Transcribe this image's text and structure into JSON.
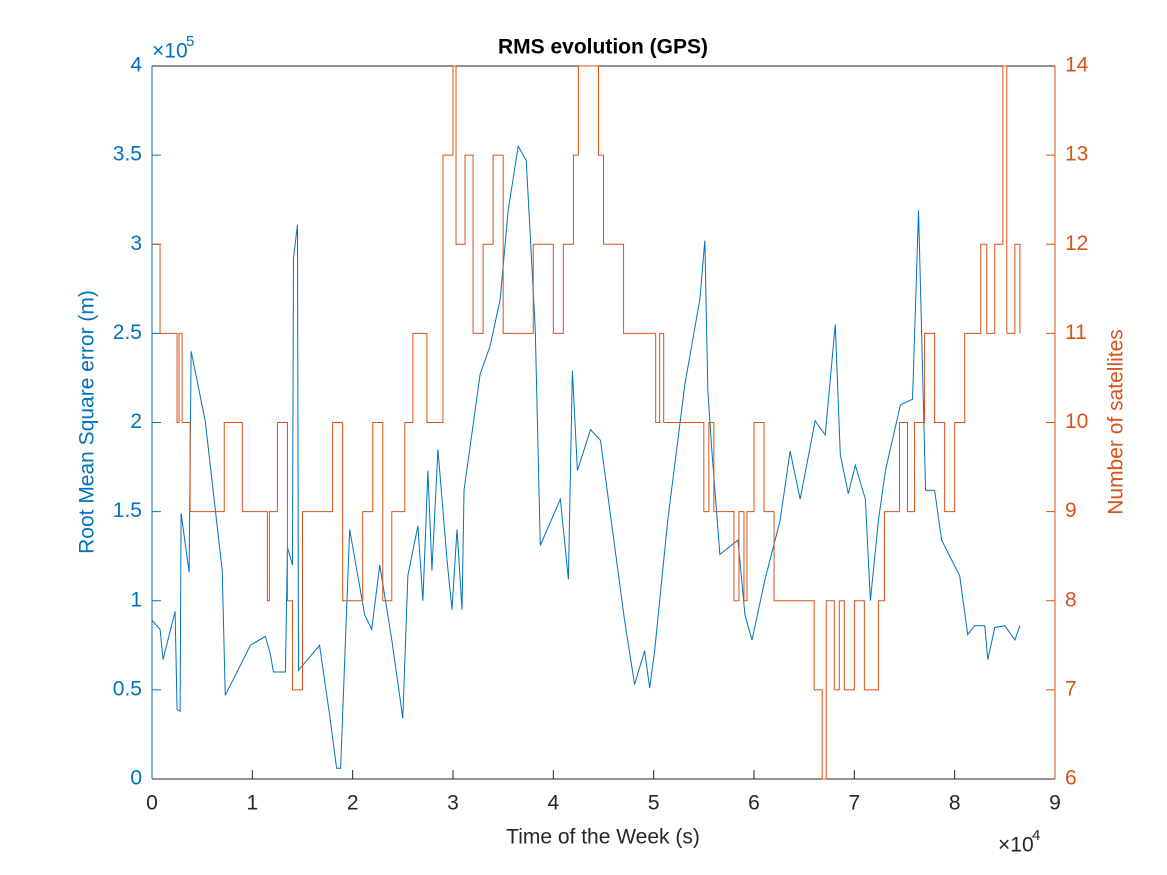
{
  "chart_data": {
    "type": "line",
    "title": "RMS evolution (GPS)",
    "xlabel": "Time of the Week (s)",
    "ylabel": "Root Mean Square error (m)",
    "y2label": "Number of satellites",
    "x_multiplier": "×10",
    "x_exponent": "4",
    "y_multiplier": "×10",
    "y_exponent": "5",
    "xlim": [
      0,
      90000
    ],
    "xticks": [
      0,
      {
        "value": 10000,
        "label": "1"
      },
      {
        "value": 20000,
        "label": "2"
      },
      {
        "value": 30000,
        "label": "3"
      },
      {
        "value": 40000,
        "label": "4"
      },
      {
        "value": 50000,
        "label": "5"
      },
      {
        "value": 60000,
        "label": "6"
      },
      {
        "value": 70000,
        "label": "7"
      },
      {
        "value": 80000,
        "label": "8"
      },
      {
        "value": 90000,
        "label": "9"
      }
    ],
    "ylim": [
      0,
      400000
    ],
    "yticks": [
      0,
      {
        "value": 50000,
        "label": "0.5"
      },
      {
        "value": 100000,
        "label": "1"
      },
      {
        "value": 150000,
        "label": "1.5"
      },
      {
        "value": 200000,
        "label": "2"
      },
      {
        "value": 250000,
        "label": "2.5"
      },
      {
        "value": 300000,
        "label": "3"
      },
      {
        "value": 350000,
        "label": "3.5"
      },
      {
        "value": 400000,
        "label": "4"
      }
    ],
    "y2lim": [
      6,
      14
    ],
    "y2ticks": [
      6,
      7,
      8,
      9,
      10,
      11,
      12,
      13,
      14
    ],
    "series": [
      {
        "color": "#0072BD",
        "x": [
          0,
          800,
          1100,
          2300,
          2500,
          2800,
          2900,
          3700,
          3900,
          5300,
          7000,
          7300,
          9100,
          9800,
          11300,
          11800,
          12100,
          13300,
          13500,
          14000,
          14100,
          14500,
          14600,
          16700,
          17700,
          18400,
          18800,
          19700,
          21200,
          21900,
          22700,
          23900,
          25000,
          25500,
          26500,
          27000,
          27500,
          27900,
          28500,
          29400,
          29900,
          30400,
          30900,
          31100,
          32700,
          33700,
          34700,
          35500,
          36500,
          37300,
          38200,
          38700,
          40700,
          41500,
          41900,
          42400,
          43700,
          44700,
          47100,
          48100,
          49100,
          49600,
          50100,
          51400,
          53100,
          54600,
          55100,
          55400,
          55800,
          56600,
          58400,
          59100,
          59800,
          61100,
          62600,
          63600,
          64600,
          66100,
          67100,
          68100,
          68600,
          69400,
          70100,
          71100,
          71600,
          72400,
          73100,
          74600,
          75800,
          76400,
          77100,
          78000,
          78700,
          80500,
          81300,
          82000,
          83000,
          83300,
          84000,
          85000,
          86000,
          86500
        ],
        "values": [
          89000,
          84000,
          67000,
          94000,
          39000,
          38000,
          149000,
          116000,
          240000,
          201000,
          117000,
          47000,
          67000,
          75000,
          80000,
          70000,
          60000,
          60000,
          130000,
          120000,
          292000,
          311000,
          61000,
          75000,
          36000,
          6000,
          6000,
          140000,
          92000,
          84000,
          120000,
          78000,
          34000,
          114000,
          142000,
          100000,
          173000,
          117000,
          185000,
          123000,
          95000,
          140000,
          95000,
          162000,
          227000,
          243000,
          269000,
          319000,
          355000,
          347000,
          252000,
          131000,
          157000,
          112000,
          229000,
          173000,
          196000,
          190000,
          89000,
          53000,
          72000,
          51000,
          72000,
          145000,
          221000,
          269000,
          302000,
          218000,
          184000,
          126000,
          134000,
          92000,
          78000,
          112000,
          145000,
          184000,
          157000,
          201000,
          193000,
          255000,
          182000,
          160000,
          176000,
          157000,
          100000,
          145000,
          173000,
          210000,
          213000,
          319000,
          162000,
          162000,
          134000,
          114000,
          81000,
          86000,
          86000,
          67000,
          85000,
          86000,
          78000,
          86000
        ]
      },
      {
        "color": "#D95319",
        "axis": "y2",
        "step": true,
        "x": [
          0,
          800,
          2500,
          2700,
          3000,
          3800,
          7200,
          9000,
          11500,
          11700,
          12500,
          13500,
          14000,
          15000,
          18000,
          19000,
          21000,
          22000,
          23000,
          23900,
          25200,
          26000,
          27400,
          29000,
          30000,
          30300,
          31200,
          32000,
          33000,
          34000,
          35000,
          38000,
          40000,
          41000,
          42000,
          42500,
          44500,
          45000,
          47000,
          50200,
          50600,
          51000,
          55000,
          55500,
          56000,
          58000,
          58500,
          59000,
          59300,
          60000,
          61000,
          62000,
          66000,
          66800,
          67200,
          68000,
          68500,
          69000,
          70000,
          71000,
          72400,
          73000,
          74500,
          75300,
          76000,
          77000,
          78000,
          79000,
          80000,
          81000,
          82600,
          83200,
          84000,
          84800,
          85200,
          86000,
          86500
        ],
        "values": [
          12,
          11,
          10,
          11,
          10,
          9,
          10,
          9,
          8,
          9,
          10,
          8,
          7,
          9,
          10,
          8,
          9,
          10,
          8,
          9,
          10,
          11,
          10,
          13,
          14,
          12,
          13,
          11,
          12,
          13,
          11,
          12,
          11,
          12,
          13,
          14,
          13,
          12,
          11,
          10,
          11,
          10,
          9,
          10,
          9,
          8,
          9,
          8,
          9,
          10,
          9,
          8,
          7,
          6,
          8,
          7,
          8,
          7,
          8,
          7,
          8,
          9,
          10,
          9,
          10,
          11,
          10,
          9,
          10,
          11,
          12,
          11,
          12,
          14,
          11,
          12,
          11
        ]
      }
    ]
  }
}
